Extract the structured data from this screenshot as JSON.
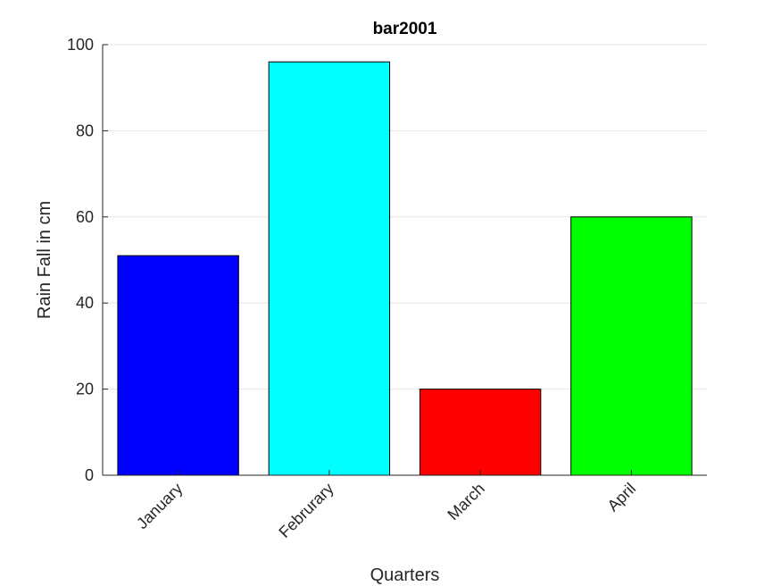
{
  "chart_data": {
    "type": "bar",
    "title": "bar2001",
    "xlabel": "Quarters",
    "ylabel": "Rain Fall in cm",
    "categories": [
      "January",
      "Februrary",
      "March",
      "April"
    ],
    "values": [
      51,
      96,
      20,
      60
    ],
    "bar_colors": [
      "#0000ff",
      "#00ffff",
      "#ff0000",
      "#00ff00"
    ],
    "ylim": [
      0,
      100
    ],
    "yticks": [
      "0",
      "20",
      "40",
      "60",
      "80",
      "100"
    ],
    "grid": "horizontal",
    "tick_label_rotation": "45 degrees",
    "legend": "none"
  }
}
